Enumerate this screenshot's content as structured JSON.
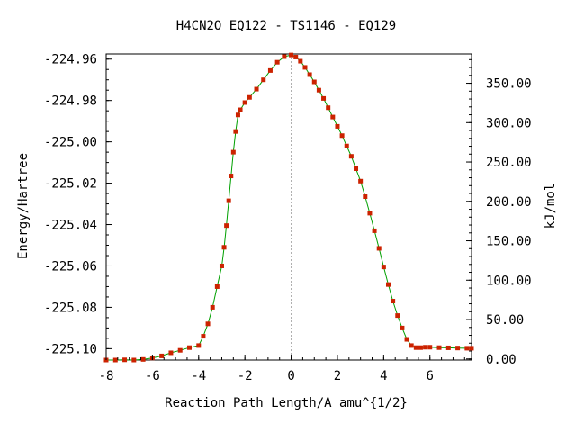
{
  "chart_data": {
    "type": "line",
    "title": "H4CN2O   EQ122 - TS1146 - EQ129",
    "xlabel": "Reaction Path Length/A amu^{1/2}",
    "ylabel": "Energy/Hartree",
    "y2label": "kJ/mol",
    "xlim": [
      -8.0,
      7.8
    ],
    "ylim": [
      -225.1055,
      -224.9575
    ],
    "y2lim": [
      -1.4,
      387.2
    ],
    "xticks": [
      -8,
      -6,
      -4,
      -2,
      0,
      2,
      4,
      6
    ],
    "xtick_labels": [
      "-8",
      "-6",
      "-4",
      "-2",
      "0",
      "2",
      "4",
      "6"
    ],
    "yticks": [
      -224.96,
      -224.98,
      -225.0,
      -225.02,
      -225.04,
      -225.06,
      -225.08,
      -225.1
    ],
    "ytick_labels": [
      "-224.96",
      "-224.98",
      "-225.00",
      "-225.02",
      "-225.04",
      "-225.06",
      "-225.08",
      "-225.10"
    ],
    "y2ticks": [
      0,
      50,
      100,
      150,
      200,
      250,
      300,
      350
    ],
    "y2tick_labels": [
      "0.00",
      "50.00",
      "100.00",
      "150.00",
      "200.00",
      "250.00",
      "300.00",
      "350.00"
    ],
    "ts_marker_x": 0,
    "grid": false,
    "colors": {
      "line": "#00a000",
      "marker": "#cc2200",
      "ts_line": "#aaaaaa"
    },
    "series": [
      {
        "x": [
          -8.0,
          -7.6,
          -7.2,
          -6.8,
          -6.4,
          -6.0,
          -5.6,
          -5.2,
          -4.8,
          -4.4,
          -4.0,
          -3.8,
          -3.6,
          -3.4,
          -3.2,
          -3.0,
          -2.9,
          -2.8,
          -2.7,
          -2.6,
          -2.5,
          -2.4,
          -2.3,
          -2.2,
          -2.0,
          -1.8,
          -1.5,
          -1.2,
          -0.9,
          -0.6,
          -0.3,
          0.0,
          0.2,
          0.4,
          0.6,
          0.8,
          1.0,
          1.2,
          1.4,
          1.6,
          1.8,
          2.0,
          2.2,
          2.4,
          2.6,
          2.8,
          3.0,
          3.2,
          3.4,
          3.6,
          3.8,
          4.0,
          4.2,
          4.4,
          4.6,
          4.8,
          5.0,
          5.2,
          5.4,
          5.6,
          5.8,
          6.0,
          6.4,
          6.8,
          7.2,
          7.6,
          7.8
        ],
        "y": [
          -225.1055,
          -225.1055,
          -225.1054,
          -225.1055,
          -225.1052,
          -225.1045,
          -225.1035,
          -225.102,
          -225.1008,
          -225.0995,
          -225.0985,
          -225.094,
          -225.088,
          -225.08,
          -225.07,
          -225.06,
          -225.051,
          -225.0405,
          -225.0285,
          -225.0165,
          -225.005,
          -224.995,
          -224.987,
          -224.9845,
          -224.981,
          -224.9785,
          -224.9745,
          -224.97,
          -224.9655,
          -224.9615,
          -224.9588,
          -224.958,
          -224.959,
          -224.961,
          -224.964,
          -224.9675,
          -224.971,
          -224.975,
          -224.979,
          -224.9835,
          -224.988,
          -224.9925,
          -224.997,
          -225.002,
          -225.007,
          -225.013,
          -225.019,
          -225.0265,
          -225.0345,
          -225.043,
          -225.0515,
          -225.0605,
          -225.069,
          -225.077,
          -225.084,
          -225.09,
          -225.0955,
          -225.0985,
          -225.0995,
          -225.0995,
          -225.0993,
          -225.0993,
          -225.0995,
          -225.0996,
          -225.0997,
          -225.0998,
          -225.0998
        ]
      }
    ]
  }
}
